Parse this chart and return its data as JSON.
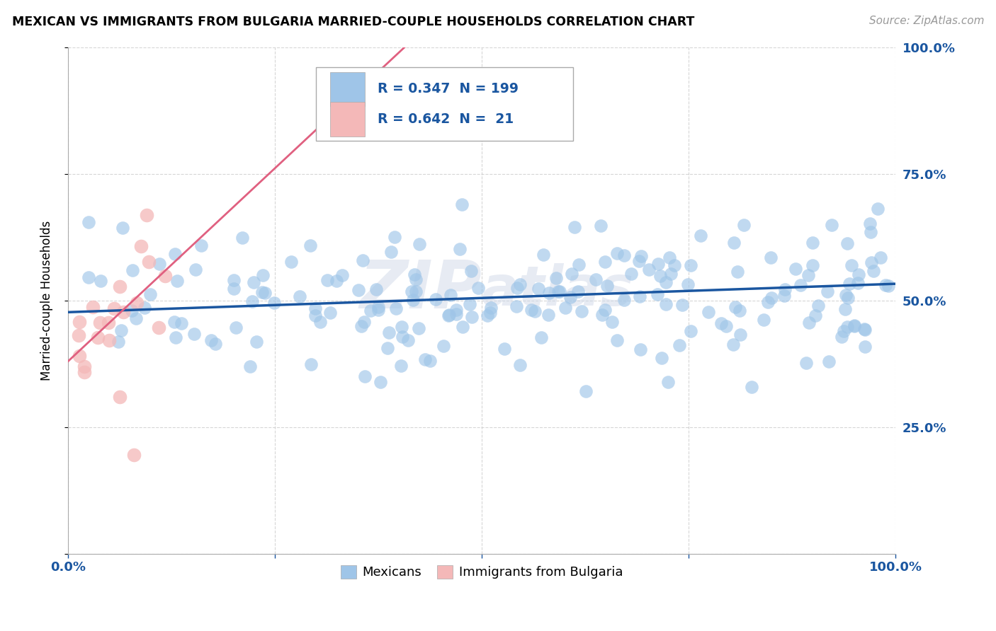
{
  "title": "MEXICAN VS IMMIGRANTS FROM BULGARIA MARRIED-COUPLE HOUSEHOLDS CORRELATION CHART",
  "source": "Source: ZipAtlas.com",
  "ylabel": "Married-couple Households",
  "watermark": "ZIPAtlas",
  "blue_R": 0.347,
  "blue_N": 199,
  "pink_R": 0.642,
  "pink_N": 21,
  "blue_color": "#9fc5e8",
  "blue_color_dark": "#1a56a0",
  "pink_color": "#f4b8b8",
  "pink_color_dark": "#e06080",
  "legend_blue_label": "Mexicans",
  "legend_pink_label": "Immigrants from Bulgaria",
  "ytick_values": [
    0.0,
    0.25,
    0.5,
    0.75,
    1.0
  ],
  "xtick_values": [
    0.0,
    0.25,
    0.5,
    0.75,
    1.0
  ],
  "right_ytick_labels": [
    "",
    "25.0%",
    "50.0%",
    "75.0%",
    "100.0%"
  ],
  "blue_trend_x0": 0.0,
  "blue_trend_x1": 1.0,
  "blue_trend_y0": 0.477,
  "blue_trend_y1": 0.533,
  "pink_trend_x0": 0.0,
  "pink_trend_x1": 0.42,
  "pink_trend_y0": 0.38,
  "pink_trend_y1": 1.02,
  "background_color": "#ffffff",
  "grid_color": "#cccccc",
  "title_color": "#000000",
  "accent_color": "#1a56a0",
  "watermark_color": "#d0d8e8",
  "title_fontsize": 12.5,
  "source_fontsize": 11,
  "tick_fontsize": 13,
  "ylabel_fontsize": 12
}
